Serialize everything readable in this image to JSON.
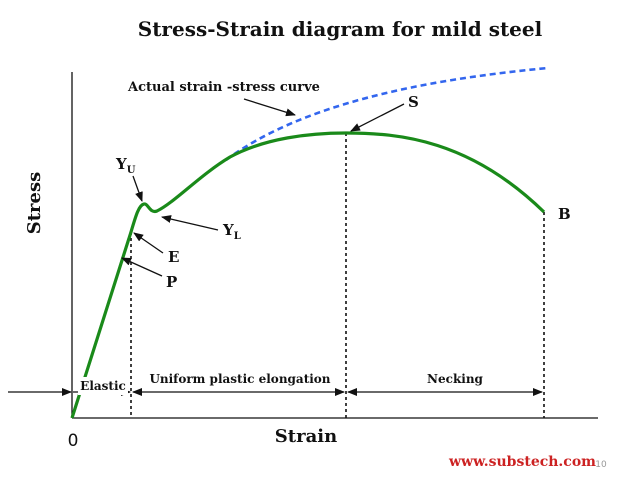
{
  "title": "Stress-Strain diagram for mild steel",
  "axes": {
    "y_label": "Stress",
    "x_label": "Strain",
    "origin_label": "0"
  },
  "annotations": {
    "actual_curve": "Actual strain -stress curve",
    "s_point": "S",
    "yu_main": "Y",
    "yu_sub": "U",
    "yl_main": "Y",
    "yl_sub": "L",
    "e_point": "E",
    "p_point": "P",
    "b_point": "B"
  },
  "regions": {
    "elastic": "Elastic",
    "uniform": "Uniform plastic elongation",
    "necking": "Necking"
  },
  "footer": {
    "url": "www.substech.com",
    "page_number": "10"
  },
  "colors": {
    "curve_engineering": "#1a8a1a",
    "curve_actual": "#3366ee",
    "footer_url": "#cc2222",
    "text": "#111111"
  }
}
